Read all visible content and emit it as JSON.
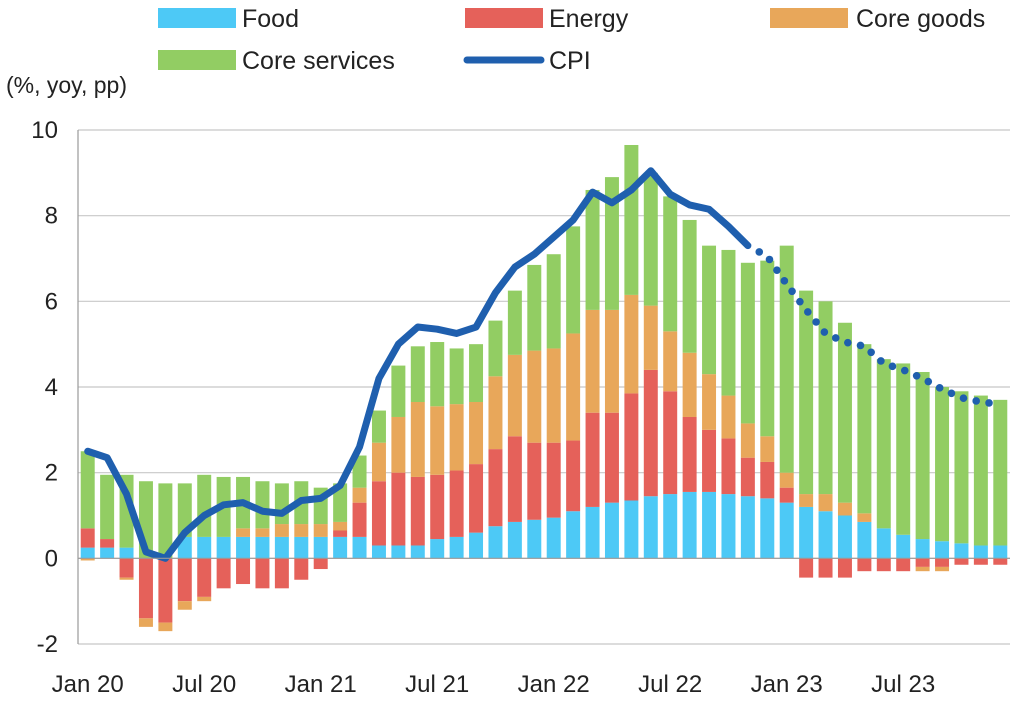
{
  "chart_data": {
    "type": "bar",
    "stacked": true,
    "unit_label": "(%, yoy, pp)",
    "title": "",
    "xlabel": "",
    "ylabel": "",
    "ylim": [
      -2,
      10
    ],
    "yticks": [
      -2,
      0,
      2,
      4,
      6,
      8,
      10
    ],
    "ytick_labels": [
      "-2",
      "0",
      "2",
      "4",
      "6",
      "8",
      "10"
    ],
    "grid": "horizontal",
    "legend_position": "top",
    "categories": [
      "Jan 20",
      "Feb 20",
      "Mar 20",
      "Apr 20",
      "May 20",
      "Jun 20",
      "Jul 20",
      "Aug 20",
      "Sep 20",
      "Oct 20",
      "Nov 20",
      "Dec 20",
      "Jan 21",
      "Feb 21",
      "Mar 21",
      "Apr 21",
      "May 21",
      "Jun 21",
      "Jul 21",
      "Aug 21",
      "Sep 21",
      "Oct 21",
      "Nov 21",
      "Dec 21",
      "Jan 22",
      "Feb 22",
      "Mar 22",
      "Apr 22",
      "May 22",
      "Jun 22",
      "Jul 22",
      "Aug 22",
      "Sep 22",
      "Oct 22",
      "Nov 22",
      "Dec 22",
      "Jan 23",
      "Feb 23",
      "Mar 23",
      "Apr 23",
      "May 23",
      "Jun 23",
      "Jul 23",
      "Aug 23",
      "Sep 23",
      "Oct 23",
      "Nov 23",
      "Dec 23"
    ],
    "xtick_labels": [
      {
        "index": 0,
        "label": "Jan 20"
      },
      {
        "index": 6,
        "label": "Jul 20"
      },
      {
        "index": 12,
        "label": "Jan 21"
      },
      {
        "index": 18,
        "label": "Jul 21"
      },
      {
        "index": 24,
        "label": "Jan 22"
      },
      {
        "index": 30,
        "label": "Jul 22"
      },
      {
        "index": 36,
        "label": "Jan 23"
      },
      {
        "index": 42,
        "label": "Jul 23"
      }
    ],
    "series": [
      {
        "name": "Food",
        "kind": "bar",
        "color": "#4dc9f6",
        "values": [
          0.25,
          0.25,
          0.25,
          0,
          0,
          0.5,
          0.5,
          0.5,
          0.5,
          0.5,
          0.5,
          0.5,
          0.5,
          0.5,
          0.5,
          0.3,
          0.3,
          0.3,
          0.45,
          0.5,
          0.6,
          0.75,
          0.85,
          0.9,
          0.95,
          1.1,
          1.2,
          1.3,
          1.35,
          1.45,
          1.5,
          1.55,
          1.55,
          1.5,
          1.45,
          1.4,
          1.3,
          1.2,
          1.1,
          1.0,
          0.85,
          0.7,
          0.55,
          0.45,
          0.4,
          0.35,
          0.3,
          0.3
        ]
      },
      {
        "name": "Energy",
        "kind": "bar",
        "color": "#e5615a",
        "values": [
          0.45,
          0.2,
          -0.45,
          -1.4,
          -1.5,
          -1.0,
          -0.9,
          -0.7,
          -0.6,
          -0.7,
          -0.7,
          -0.5,
          -0.25,
          0.15,
          0.8,
          1.5,
          1.7,
          1.6,
          1.5,
          1.55,
          1.6,
          1.8,
          2.0,
          1.8,
          1.75,
          1.65,
          2.2,
          2.1,
          2.5,
          2.95,
          2.4,
          1.75,
          1.45,
          1.3,
          0.9,
          0.85,
          0.35,
          -0.45,
          -0.45,
          -0.45,
          -0.3,
          -0.3,
          -0.3,
          -0.2,
          -0.2,
          -0.15,
          -0.15,
          -0.15
        ]
      },
      {
        "name": "Core goods",
        "kind": "bar",
        "color": "#e8a75a",
        "values": [
          -0.05,
          0,
          -0.05,
          -0.2,
          -0.2,
          -0.2,
          -0.1,
          0,
          0.2,
          0.2,
          0.3,
          0.3,
          0.3,
          0.2,
          0.35,
          0.9,
          1.3,
          1.75,
          1.6,
          1.55,
          1.45,
          1.7,
          1.9,
          2.15,
          2.2,
          2.5,
          2.4,
          2.4,
          2.3,
          1.5,
          1.4,
          1.5,
          1.3,
          1.0,
          0.8,
          0.6,
          0.35,
          0.3,
          0.4,
          0.3,
          0.2,
          0,
          0,
          -0.1,
          -0.1,
          0,
          0,
          0
        ]
      },
      {
        "name": "Core services",
        "kind": "bar",
        "color": "#92cd63",
        "values": [
          1.8,
          1.5,
          1.7,
          1.8,
          1.75,
          1.25,
          1.45,
          1.4,
          1.2,
          1.1,
          0.95,
          1.0,
          0.85,
          0.9,
          0.75,
          0.75,
          1.2,
          1.3,
          1.5,
          1.3,
          1.35,
          1.3,
          1.5,
          2.0,
          2.2,
          2.5,
          2.8,
          3.1,
          3.5,
          3.1,
          3.15,
          3.1,
          3.0,
          3.4,
          3.75,
          4.1,
          5.3,
          4.75,
          4.5,
          4.2,
          3.95,
          3.95,
          4.0,
          3.9,
          3.6,
          3.55,
          3.5,
          3.4
        ]
      },
      {
        "name": "CPI",
        "kind": "line",
        "color": "#1f5fae",
        "values": [
          2.5,
          2.35,
          1.5,
          0.15,
          0.0,
          0.6,
          1.0,
          1.25,
          1.3,
          1.1,
          1.05,
          1.35,
          1.4,
          1.7,
          2.6,
          4.2,
          5.0,
          5.4,
          5.35,
          5.25,
          5.4,
          6.2,
          6.8,
          7.1,
          7.5,
          7.9,
          8.55,
          8.3,
          8.6,
          9.05,
          8.5,
          8.25,
          8.15,
          7.75,
          7.3,
          7.05,
          6.4,
          5.8,
          5.25,
          5.05,
          4.95,
          4.55,
          4.4,
          4.2,
          3.95,
          3.75,
          3.65,
          3.6
        ],
        "dotted_from_index": 34
      }
    ]
  }
}
